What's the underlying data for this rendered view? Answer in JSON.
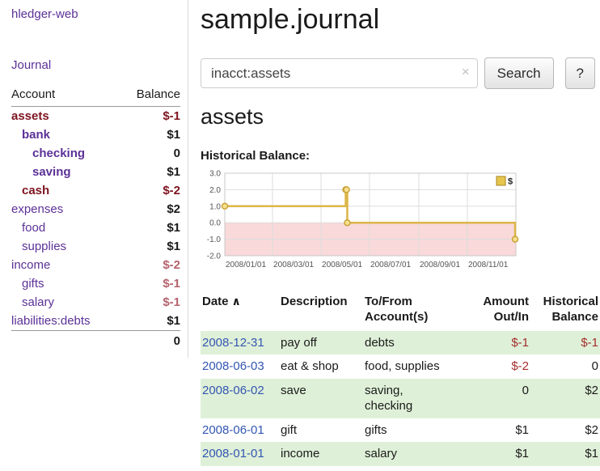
{
  "app": {
    "title": "hledger-web",
    "nav": {
      "journal": "Journal"
    }
  },
  "sidebar": {
    "headers": {
      "account": "Account",
      "balance": "Balance"
    },
    "accounts": [
      {
        "name": "assets",
        "indent": 0,
        "bold": true,
        "name_color": "red",
        "balance": "$-1",
        "balance_color": "dark-red"
      },
      {
        "name": "bank",
        "indent": 1,
        "bold": true,
        "name_color": "purple",
        "balance": "$1",
        "balance_color": "black"
      },
      {
        "name": "checking",
        "indent": 2,
        "bold": true,
        "name_color": "purple",
        "balance": "0",
        "balance_color": "black"
      },
      {
        "name": "saving",
        "indent": 2,
        "bold": true,
        "name_color": "purple",
        "balance": "$1",
        "balance_color": "black"
      },
      {
        "name": "cash",
        "indent": 1,
        "bold": true,
        "name_color": "red",
        "balance": "$-2",
        "balance_color": "dark-red"
      },
      {
        "name": "expenses",
        "indent": 0,
        "bold": false,
        "name_color": "purple",
        "balance": "$2",
        "balance_color": "black"
      },
      {
        "name": "food",
        "indent": 1,
        "bold": false,
        "name_color": "purple",
        "balance": "$1",
        "balance_color": "black"
      },
      {
        "name": "supplies",
        "indent": 1,
        "bold": false,
        "name_color": "purple",
        "balance": "$1",
        "balance_color": "black"
      },
      {
        "name": "income",
        "indent": 0,
        "bold": false,
        "name_color": "purple",
        "balance": "$-2",
        "balance_color": "soft-red"
      },
      {
        "name": "gifts",
        "indent": 1,
        "bold": false,
        "name_color": "purple",
        "balance": "$-1",
        "balance_color": "soft-red"
      },
      {
        "name": "salary",
        "indent": 1,
        "bold": false,
        "name_color": "purple",
        "balance": "$-1",
        "balance_color": "soft-red"
      },
      {
        "name": "liabilities:debts",
        "indent": 0,
        "bold": false,
        "name_color": "purple",
        "balance": "$1",
        "balance_color": "black"
      }
    ],
    "total": "0"
  },
  "main": {
    "title": "sample.journal",
    "search": {
      "value": "inacct:assets",
      "clear_icon": "×",
      "button": "Search",
      "help_button": "?"
    },
    "account_heading": "assets",
    "chart_label": "Historical Balance:"
  },
  "journal": {
    "headers": [
      "Date",
      "Description",
      "To/From Account(s)",
      "Amount Out/In",
      "Historical Balance"
    ],
    "sort_icon": "∧",
    "rows": [
      {
        "date": "2008-12-31",
        "description": "pay off",
        "accounts": "debts",
        "amount": "$-1",
        "amount_negative": true,
        "balance": "$-1",
        "balance_negative": true
      },
      {
        "date": "2008-06-03",
        "description": "eat & shop",
        "accounts": "food, supplies",
        "amount": "$-2",
        "amount_negative": true,
        "balance": "0",
        "balance_negative": false
      },
      {
        "date": "2008-06-02",
        "description": "save",
        "accounts": "saving, checking",
        "amount": "0",
        "amount_negative": false,
        "balance": "$2",
        "balance_negative": false
      },
      {
        "date": "2008-06-01",
        "description": "gift",
        "accounts": "gifts",
        "amount": "$1",
        "amount_negative": false,
        "balance": "$2",
        "balance_negative": false
      },
      {
        "date": "2008-01-01",
        "description": "income",
        "accounts": "salary",
        "amount": "$1",
        "amount_negative": false,
        "balance": "$1",
        "balance_negative": false
      }
    ]
  },
  "chart_data": {
    "type": "line",
    "style": "step-after",
    "title": "Historical Balance",
    "legend": [
      {
        "label": "$",
        "color": "#e7c64f"
      }
    ],
    "ylim": [
      -2.0,
      3.0
    ],
    "y_ticks": [
      3.0,
      2.0,
      1.0,
      0.0,
      -1.0,
      -2.0
    ],
    "x_ticks": [
      {
        "label": "2008/01/01",
        "day": 0
      },
      {
        "label": "2008/03/01",
        "day": 60
      },
      {
        "label": "2008/05/01",
        "day": 121
      },
      {
        "label": "2008/07/01",
        "day": 182
      },
      {
        "label": "2008/09/01",
        "day": 244
      },
      {
        "label": "2008/11/01",
        "day": 305
      }
    ],
    "x_range_days": [
      0,
      366
    ],
    "points": [
      {
        "date": "2008-01-01",
        "day": 0,
        "value": 1
      },
      {
        "date": "2008-06-01",
        "day": 152,
        "value": 2
      },
      {
        "date": "2008-06-02",
        "day": 153,
        "value": 2
      },
      {
        "date": "2008-06-03",
        "day": 154,
        "value": 0
      },
      {
        "date": "2008-12-31",
        "day": 365,
        "value": -1
      }
    ],
    "colors": {
      "line": "#dcb648",
      "marker_fill": "#f7df8e",
      "marker_stroke": "#c9a33a",
      "negative_region": "#f9d9d9",
      "grid": "#dddddd",
      "axis_text": "#555555"
    }
  }
}
